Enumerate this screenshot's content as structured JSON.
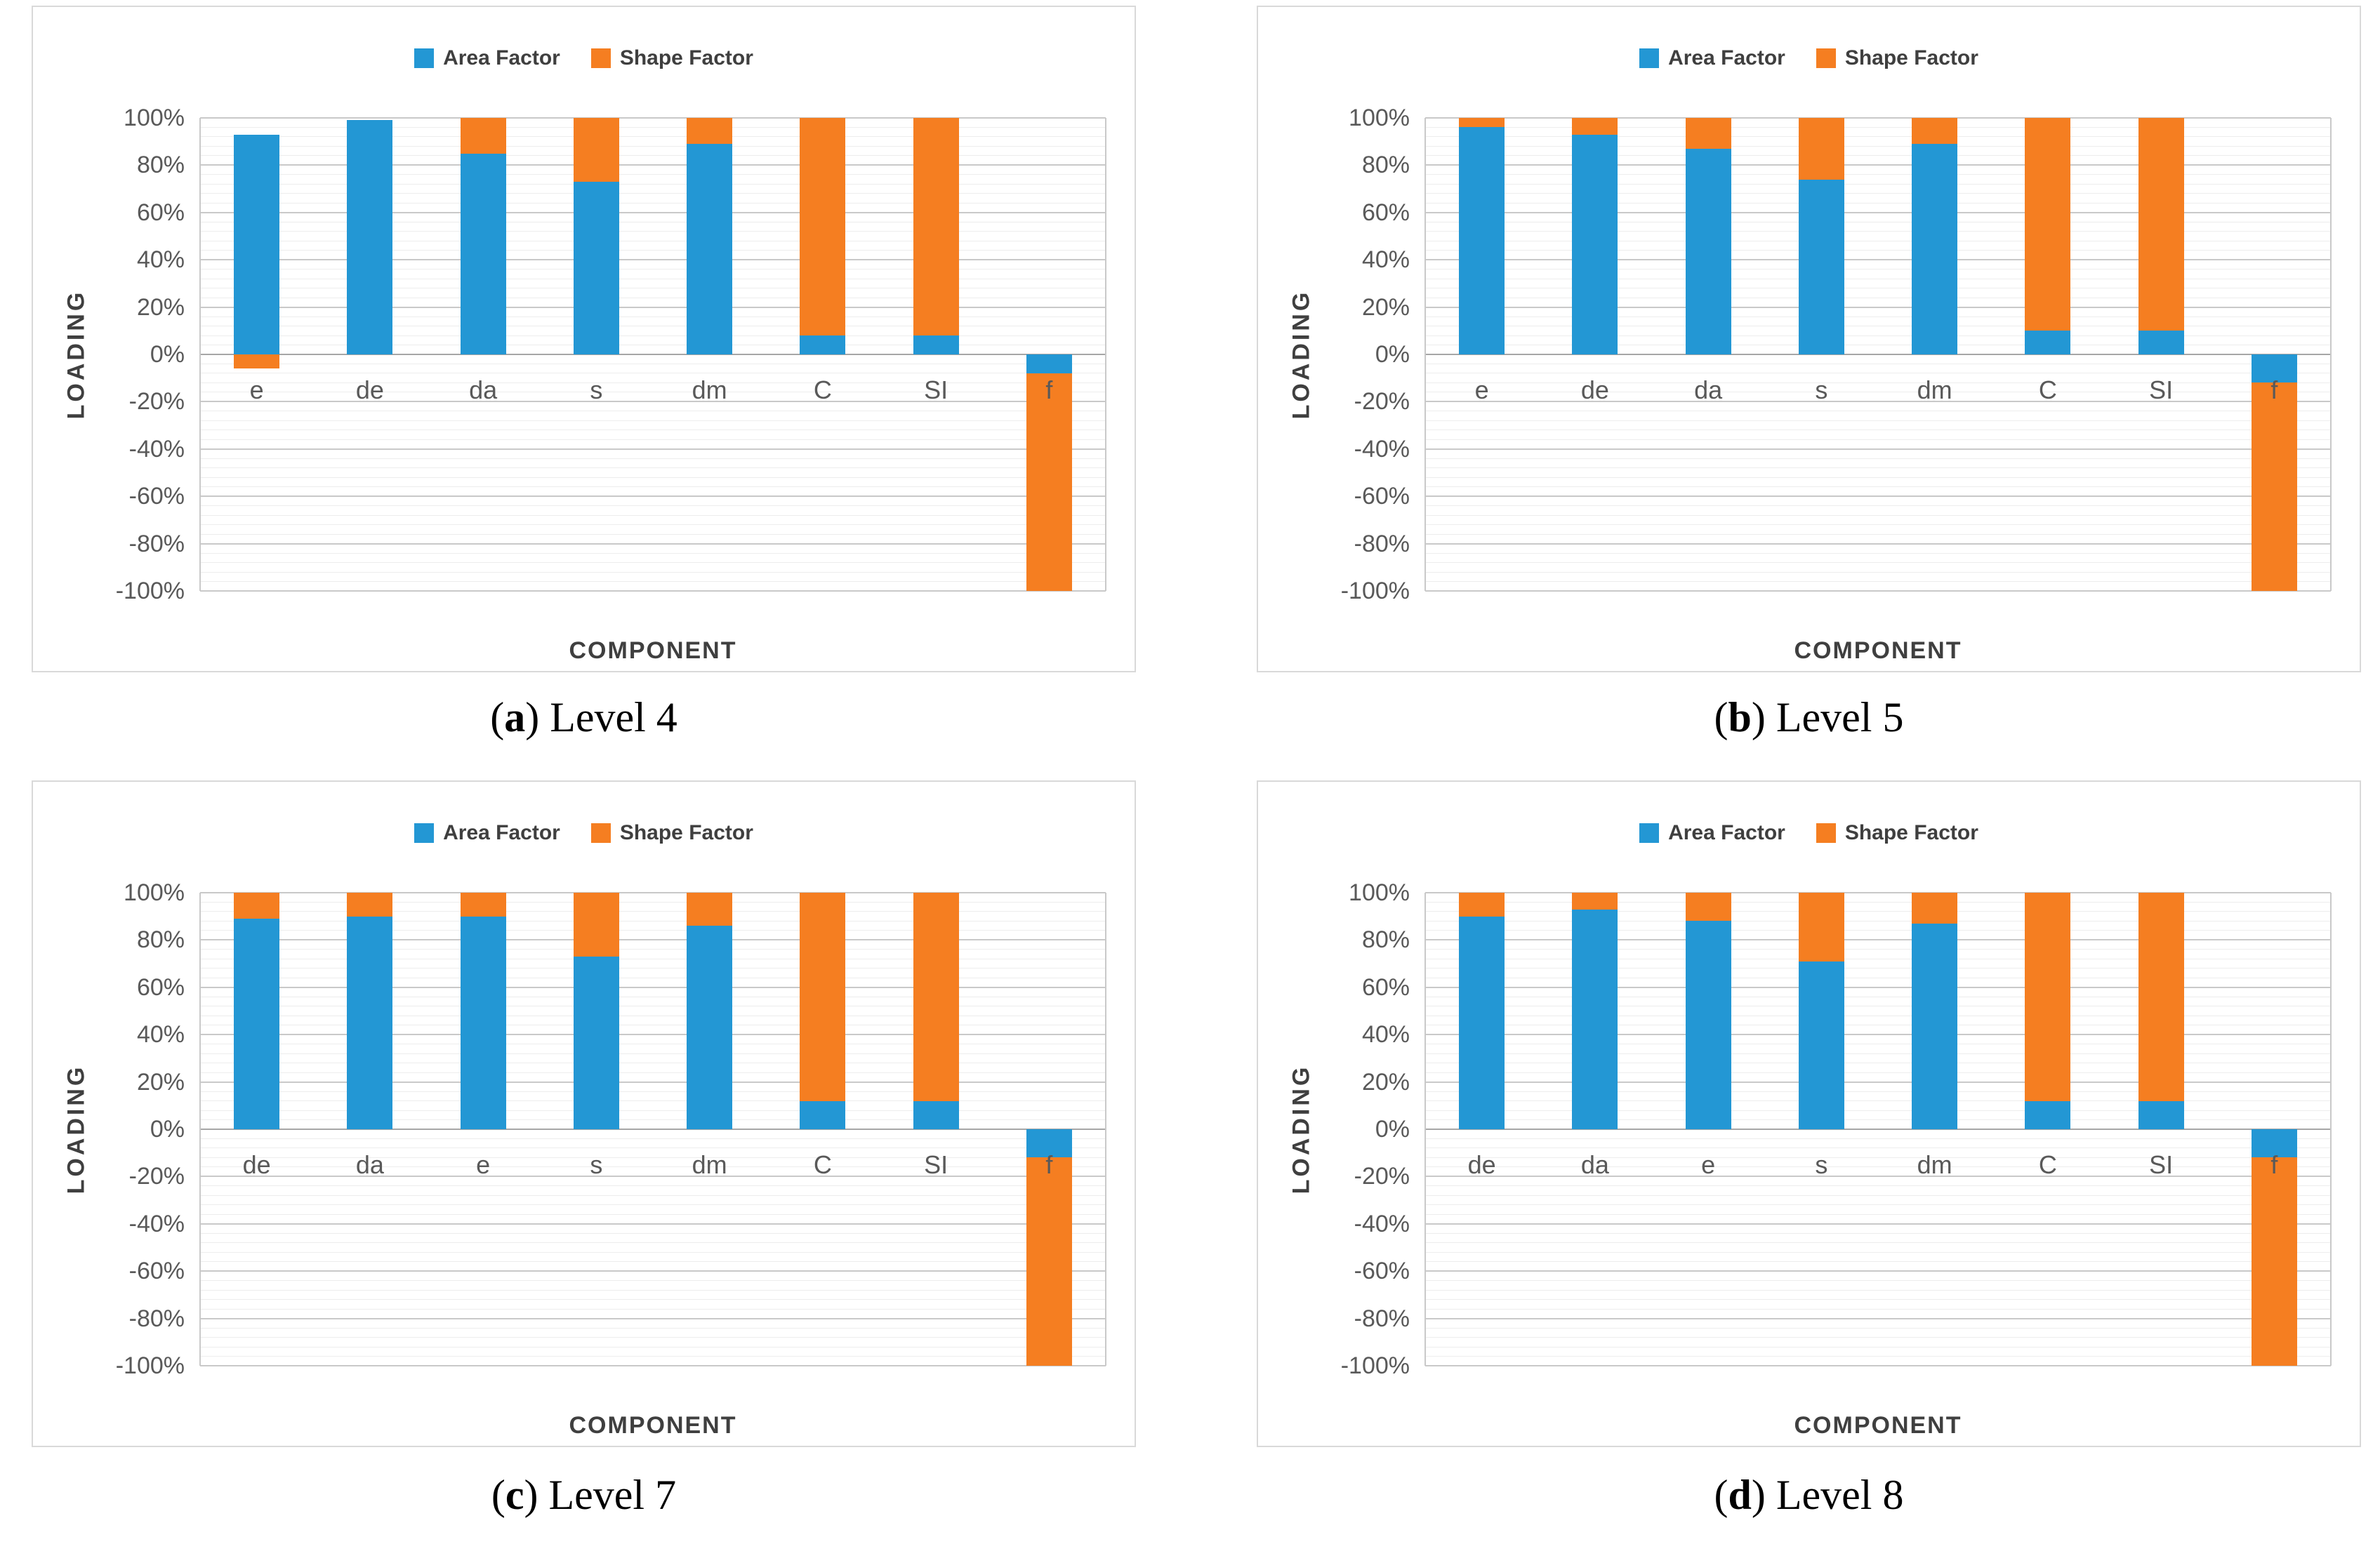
{
  "figure": {
    "caption_open": "(",
    "caption_close": ")",
    "captions": [
      {
        "letter": "a",
        "label": "Level 4"
      },
      {
        "letter": "b",
        "label": "Level 5"
      },
      {
        "letter": "c",
        "label": "Level 7"
      },
      {
        "letter": "d",
        "label": "Level 8"
      }
    ]
  },
  "colors": {
    "area_factor": "#2397d4",
    "shape_factor": "#f57e21",
    "major_grid": "#c9c9c9",
    "minor_grid": "#ededed",
    "zero_line": "#a6a6a6",
    "tick_text": "#595959",
    "title_text": "#3f3f3f",
    "panel_border": "#d9d9d9"
  },
  "chart_data": [
    {
      "type": "bar",
      "stacked": true,
      "caption": "(a) Level 4",
      "xlabel": "COMPONENT",
      "ylabel": "LOADING",
      "ylim": [
        -100,
        100
      ],
      "ytick_step": 20,
      "yminor_step": 4,
      "ytick_suffix": "%",
      "grid": true,
      "legend_position": "top",
      "categories": [
        "e",
        "de",
        "da",
        "s",
        "dm",
        "C",
        "SI",
        "f"
      ],
      "series": [
        {
          "name": "Area Factor",
          "color": "#2397d4",
          "values": [
            93,
            99,
            85,
            73,
            89,
            8,
            8,
            -8
          ]
        },
        {
          "name": "Shape Factor",
          "color": "#f57e21",
          "values": [
            -6,
            0,
            15,
            27,
            11,
            92,
            92,
            -92
          ]
        }
      ]
    },
    {
      "type": "bar",
      "stacked": true,
      "caption": "(b) Level 5",
      "xlabel": "COMPONENT",
      "ylabel": "LOADING",
      "ylim": [
        -100,
        100
      ],
      "ytick_step": 20,
      "yminor_step": 4,
      "ytick_suffix": "%",
      "grid": true,
      "legend_position": "top",
      "categories": [
        "e",
        "de",
        "da",
        "s",
        "dm",
        "C",
        "SI",
        "f"
      ],
      "series": [
        {
          "name": "Area Factor",
          "color": "#2397d4",
          "values": [
            96,
            93,
            87,
            74,
            89,
            10,
            10,
            -12
          ]
        },
        {
          "name": "Shape Factor",
          "color": "#f57e21",
          "values": [
            4,
            7,
            13,
            26,
            11,
            90,
            90,
            -88
          ]
        }
      ]
    },
    {
      "type": "bar",
      "stacked": true,
      "caption": "(c) Level 7",
      "xlabel": "COMPONENT",
      "ylabel": "LOADING",
      "ylim": [
        -100,
        100
      ],
      "ytick_step": 20,
      "yminor_step": 4,
      "ytick_suffix": "%",
      "grid": true,
      "legend_position": "top",
      "categories": [
        "de",
        "da",
        "e",
        "s",
        "dm",
        "C",
        "SI",
        "f"
      ],
      "series": [
        {
          "name": "Area Factor",
          "color": "#2397d4",
          "values": [
            89,
            90,
            90,
            73,
            86,
            12,
            12,
            -12
          ]
        },
        {
          "name": "Shape Factor",
          "color": "#f57e21",
          "values": [
            11,
            10,
            10,
            27,
            14,
            88,
            88,
            -88
          ]
        }
      ]
    },
    {
      "type": "bar",
      "stacked": true,
      "caption": "(d) Level 8",
      "xlabel": "COMPONENT",
      "ylabel": "LOADING",
      "ylim": [
        -100,
        100
      ],
      "ytick_step": 20,
      "yminor_step": 4,
      "ytick_suffix": "%",
      "grid": true,
      "legend_position": "top",
      "categories": [
        "de",
        "da",
        "e",
        "s",
        "dm",
        "C",
        "SI",
        "f"
      ],
      "series": [
        {
          "name": "Area Factor",
          "color": "#2397d4",
          "values": [
            90,
            93,
            88,
            71,
            87,
            12,
            12,
            -12
          ]
        },
        {
          "name": "Shape Factor",
          "color": "#f57e21",
          "values": [
            10,
            7,
            12,
            29,
            13,
            88,
            88,
            -88
          ]
        }
      ]
    }
  ]
}
